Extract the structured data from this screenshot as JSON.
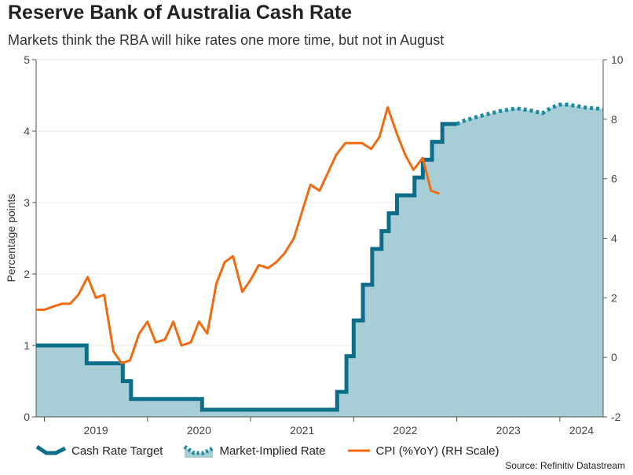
{
  "title": "Reserve Bank of Australia Cash Rate",
  "subtitle": "Markets think the RBA will hike rates one more time, but not in August",
  "source": "Source: Refinitiv Datastream",
  "legend": {
    "cash_rate": "Cash Rate Target",
    "market": "Market-Implied Rate",
    "cpi": "CPI (%YoY) (RH Scale)"
  },
  "colors": {
    "cash_rate": "#0d6e89",
    "market": "#1b8a9e",
    "area": "#a7cdd6",
    "cpi": "#f26a10",
    "grid": "#ebebeb",
    "axis": "#555555"
  },
  "chart_data": {
    "type": "line",
    "title": "Reserve Bank of Australia Cash Rate",
    "subtitle": "Markets think the RBA will hike rates one more time, but not in August",
    "ylabel": "Percentage points",
    "ylim": [
      0,
      5
    ],
    "y_ticks": [
      0,
      1,
      2,
      3,
      4,
      5
    ],
    "y2lim": [
      -2,
      10
    ],
    "y2_ticks": [
      -2,
      0,
      2,
      4,
      6,
      8,
      10
    ],
    "xlim": [
      2018.92,
      2024.42
    ],
    "x_tick_labels": [
      "2019",
      "2020",
      "2021",
      "2022",
      "2023",
      "2024"
    ],
    "x_tick_positions": [
      2019.0,
      2020.0,
      2021.0,
      2022.0,
      2023.0,
      2024.0
    ],
    "legend_position": "bottom",
    "grid": true,
    "series": [
      {
        "name": "Cash Rate Target",
        "axis": "left",
        "style": "step",
        "points": [
          [
            2018.92,
            1.0
          ],
          [
            2019.41,
            0.75
          ],
          [
            2019.76,
            0.5
          ],
          [
            2019.84,
            0.25
          ],
          [
            2020.53,
            0.1
          ],
          [
            2021.84,
            0.35
          ],
          [
            2021.93,
            0.85
          ],
          [
            2022.0,
            1.35
          ],
          [
            2022.09,
            1.85
          ],
          [
            2022.18,
            2.35
          ],
          [
            2022.27,
            2.6
          ],
          [
            2022.34,
            2.85
          ],
          [
            2022.42,
            3.1
          ],
          [
            2022.59,
            3.35
          ],
          [
            2022.67,
            3.6
          ],
          [
            2022.76,
            3.85
          ],
          [
            2022.86,
            4.1
          ],
          [
            2023.0,
            4.1
          ]
        ]
      },
      {
        "name": "Market-Implied Rate",
        "axis": "left",
        "style": "dotted",
        "points": [
          [
            2023.0,
            4.1
          ],
          [
            2023.08,
            4.15
          ],
          [
            2023.25,
            4.22
          ],
          [
            2023.42,
            4.28
          ],
          [
            2023.58,
            4.32
          ],
          [
            2023.75,
            4.28
          ],
          [
            2023.83,
            4.25
          ],
          [
            2023.92,
            4.33
          ],
          [
            2024.0,
            4.37
          ],
          [
            2024.08,
            4.37
          ],
          [
            2024.17,
            4.35
          ],
          [
            2024.25,
            4.33
          ],
          [
            2024.33,
            4.32
          ],
          [
            2024.42,
            4.31
          ]
        ]
      },
      {
        "name": "CPI (%YoY) (RH Scale)",
        "axis": "right",
        "points": [
          [
            2018.92,
            1.6
          ],
          [
            2019.0,
            1.6
          ],
          [
            2019.08,
            1.7
          ],
          [
            2019.17,
            1.8
          ],
          [
            2019.25,
            1.8
          ],
          [
            2019.33,
            2.1
          ],
          [
            2019.42,
            2.7
          ],
          [
            2019.5,
            2.0
          ],
          [
            2019.58,
            2.1
          ],
          [
            2019.67,
            0.2
          ],
          [
            2019.75,
            -0.2
          ],
          [
            2019.83,
            -0.1
          ],
          [
            2019.92,
            0.8
          ],
          [
            2020.0,
            1.2
          ],
          [
            2020.08,
            0.5
          ],
          [
            2020.17,
            0.6
          ],
          [
            2020.25,
            1.2
          ],
          [
            2020.33,
            0.4
          ],
          [
            2020.42,
            0.5
          ],
          [
            2020.5,
            1.2
          ],
          [
            2020.58,
            0.8
          ],
          [
            2020.67,
            2.5
          ],
          [
            2020.75,
            3.2
          ],
          [
            2020.83,
            3.4
          ],
          [
            2020.92,
            2.2
          ],
          [
            2021.0,
            2.6
          ],
          [
            2021.08,
            3.1
          ],
          [
            2021.17,
            3.0
          ],
          [
            2021.25,
            3.2
          ],
          [
            2021.33,
            3.5
          ],
          [
            2021.42,
            4.0
          ],
          [
            2021.5,
            4.9
          ],
          [
            2021.58,
            5.8
          ],
          [
            2021.67,
            5.6
          ],
          [
            2021.75,
            6.2
          ],
          [
            2021.83,
            6.8
          ],
          [
            2021.92,
            7.2
          ],
          [
            2022.0,
            7.2
          ],
          [
            2022.08,
            7.2
          ],
          [
            2022.17,
            7.0
          ],
          [
            2022.25,
            7.4
          ],
          [
            2022.33,
            8.4
          ],
          [
            2022.42,
            7.5
          ],
          [
            2022.5,
            6.8
          ],
          [
            2022.58,
            6.3
          ],
          [
            2022.67,
            6.7
          ],
          [
            2022.75,
            5.6
          ],
          [
            2022.83,
            5.5
          ]
        ]
      }
    ]
  }
}
